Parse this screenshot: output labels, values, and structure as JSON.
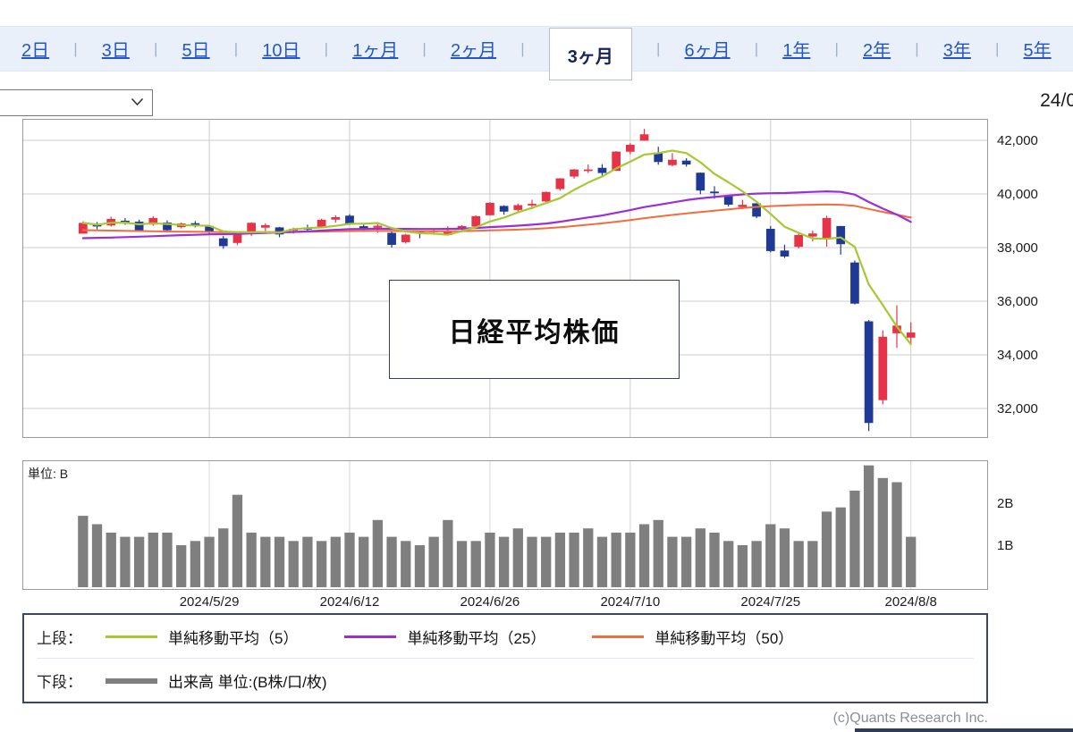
{
  "tabs": {
    "items": [
      "2日",
      "3日",
      "5日",
      "10日",
      "1ヶ月",
      "2ヶ月",
      "3ヶ月",
      "6ヶ月",
      "1年",
      "2年",
      "3年",
      "5年"
    ],
    "selected": "3ヶ月"
  },
  "header": {
    "date_display": "24/0"
  },
  "dropdown": {
    "value": ""
  },
  "chart_overlay": {
    "title": "日経平均株価"
  },
  "volume_panel": {
    "unit_label": "単位: B"
  },
  "legend": {
    "upper_label": "上段：",
    "lower_label": "下段：",
    "ma5_label": "単純移動平均（5）",
    "ma25_label": "単純移動平均（25）",
    "ma50_label": "単純移動平均（50）",
    "volume_label": "出来高 単位:(B株/口/枚)"
  },
  "footer": {
    "copyright": "(c)Quants Research Inc."
  },
  "colors": {
    "up": "#e73348",
    "down": "#1e3a96",
    "ma5": "#a8c832",
    "ma25": "#9a2fd6",
    "ma50": "#f26d3d",
    "volume": "#7f7f7f",
    "grid": "#cccccc",
    "grid_volume": "#d6d6d6",
    "panel_border": "#9a9a9a",
    "link": "#2457c4",
    "tab_selected_text": "#15235a",
    "axis_text": "#1c1c1c"
  },
  "chart_data": {
    "type": "candlestick",
    "title": "日経平均株価",
    "period_selected": "3ヶ月",
    "dates": [
      "2024/5/16",
      "2024/5/17",
      "2024/5/20",
      "2024/5/21",
      "2024/5/22",
      "2024/5/23",
      "2024/5/24",
      "2024/5/27",
      "2024/5/28",
      "2024/5/29",
      "2024/5/30",
      "2024/5/31",
      "2024/6/3",
      "2024/6/4",
      "2024/6/5",
      "2024/6/6",
      "2024/6/7",
      "2024/6/10",
      "2024/6/11",
      "2024/6/12",
      "2024/6/13",
      "2024/6/14",
      "2024/6/17",
      "2024/6/18",
      "2024/6/19",
      "2024/6/20",
      "2024/6/21",
      "2024/6/24",
      "2024/6/25",
      "2024/6/26",
      "2024/6/27",
      "2024/6/28",
      "2024/7/1",
      "2024/7/2",
      "2024/7/3",
      "2024/7/4",
      "2024/7/5",
      "2024/7/8",
      "2024/7/9",
      "2024/7/10",
      "2024/7/11",
      "2024/7/12",
      "2024/7/16",
      "2024/7/17",
      "2024/7/18",
      "2024/7/19",
      "2024/7/22",
      "2024/7/23",
      "2024/7/24",
      "2024/7/25",
      "2024/7/26",
      "2024/7/29",
      "2024/7/30",
      "2024/7/31",
      "2024/8/1",
      "2024/8/2",
      "2024/8/5",
      "2024/8/6",
      "2024/8/7",
      "2024/8/8"
    ],
    "open": [
      38519,
      38847,
      38825,
      39003,
      38967,
      38860,
      38934,
      38762,
      38908,
      38807,
      38345,
      38173,
      38590,
      38743,
      38753,
      38631,
      38732,
      38768,
      39041,
      39190,
      38797,
      38743,
      38550,
      38202,
      38585,
      38622,
      38468,
      38674,
      38781,
      39206,
      39552,
      39403,
      39573,
      39723,
      40183,
      40648,
      40891,
      40975,
      40863,
      41575,
      41985,
      41548,
      41075,
      41244,
      40792,
      40088,
      39913,
      39509,
      39650,
      38699,
      37890,
      38028,
      38412,
      38306,
      38803,
      37444,
      35250,
      32309,
      34804,
      34641
    ],
    "high": [
      38982,
      38954,
      39151,
      39102,
      39039,
      39172,
      39012,
      38935,
      38985,
      38842,
      38429,
      38512,
      38943,
      38907,
      38771,
      38744,
      38854,
      39074,
      39205,
      39246,
      38853,
      38924,
      38594,
      38516,
      38604,
      38723,
      38795,
      38832,
      39198,
      39697,
      39579,
      39639,
      39786,
      40089,
      40592,
      40929,
      41100,
      41112,
      41599,
      41889,
      42426,
      41758,
      41520,
      41331,
      40802,
      40288,
      39958,
      39779,
      39653,
      38802,
      38108,
      38514,
      38633,
      39188,
      38807,
      37519,
      35301,
      34911,
      35849,
      35213
    ],
    "low": [
      38519,
      38677,
      38783,
      38852,
      38594,
      38818,
      38559,
      38717,
      38755,
      38483,
      37958,
      38087,
      38438,
      38620,
      38384,
      38525,
      38572,
      38737,
      38932,
      38837,
      38584,
      38552,
      38001,
      38150,
      38350,
      38477,
      38450,
      38575,
      38730,
      39194,
      39227,
      39337,
      39434,
      39662,
      40123,
      40571,
      40781,
      40662,
      40861,
      41481,
      41978,
      41088,
      41030,
      41020,
      39986,
      39824,
      39533,
      39434,
      39093,
      37825,
      37611,
      37968,
      38232,
      38029,
      37737,
      35880,
      31156,
      32155,
      34259,
      34439
    ],
    "close": [
      38920,
      38787,
      39069,
      38947,
      38617,
      39103,
      38646,
      38900,
      38855,
      38557,
      38054,
      38488,
      38923,
      38837,
      38490,
      38703,
      38684,
      39038,
      39135,
      38877,
      38720,
      38814,
      38102,
      38482,
      38570,
      38633,
      38596,
      38805,
      39173,
      39667,
      39341,
      39583,
      39631,
      40074,
      40581,
      40914,
      40912,
      40781,
      41580,
      41832,
      42224,
      41191,
      41276,
      41098,
      40127,
      40064,
      39599,
      39595,
      39155,
      37870,
      37667,
      38468,
      38526,
      39102,
      38126,
      35910,
      31458,
      34675,
      35090,
      34831
    ],
    "volume_B": [
      1.7,
      1.5,
      1.3,
      1.2,
      1.2,
      1.3,
      1.3,
      1.0,
      1.1,
      1.2,
      1.4,
      2.2,
      1.3,
      1.2,
      1.2,
      1.1,
      1.2,
      1.1,
      1.2,
      1.3,
      1.2,
      1.6,
      1.2,
      1.1,
      1.0,
      1.2,
      1.6,
      1.1,
      1.1,
      1.3,
      1.2,
      1.4,
      1.2,
      1.2,
      1.3,
      1.3,
      1.4,
      1.2,
      1.3,
      1.3,
      1.5,
      1.6,
      1.2,
      1.2,
      1.4,
      1.3,
      1.1,
      1.0,
      1.1,
      1.5,
      1.4,
      1.1,
      1.1,
      1.8,
      1.9,
      2.3,
      2.9,
      2.6,
      2.5,
      1.2
    ],
    "ma5": [
      38920,
      38854,
      38925,
      38931,
      38868,
      38905,
      38876,
      38843,
      38824,
      38812,
      38602,
      38571,
      38575,
      38572,
      38558,
      38688,
      38727,
      38750,
      38810,
      38887,
      38891,
      38917,
      38730,
      38599,
      38538,
      38520,
      38477,
      38617,
      38755,
      38975,
      39116,
      39314,
      39479,
      39659,
      39842,
      40157,
      40422,
      40652,
      40954,
      41204,
      41466,
      41522,
      41621,
      41524,
      41183,
      40751,
      40433,
      40097,
      39708,
      39257,
      38777,
      38551,
      38337,
      38327,
      38378,
      38026,
      36624,
      35854,
      35052,
      34393
    ],
    "ma25": [
      38350,
      38362,
      38375,
      38390,
      38405,
      38425,
      38445,
      38462,
      38478,
      38492,
      38500,
      38510,
      38528,
      38548,
      38565,
      38583,
      38603,
      38632,
      38662,
      38688,
      38698,
      38704,
      38700,
      38696,
      38694,
      38694,
      38698,
      38708,
      38728,
      38762,
      38788,
      38818,
      38852,
      38898,
      38962,
      39042,
      39122,
      39198,
      39296,
      39396,
      39510,
      39592,
      39680,
      39770,
      39836,
      39886,
      39936,
      39982,
      40012,
      40028,
      40034,
      40058,
      40078,
      40098,
      40078,
      39978,
      39700,
      39452,
      39230,
      38958
    ],
    "ma50": [
      38650,
      38641,
      38633,
      38625,
      38617,
      38609,
      38601,
      38595,
      38589,
      38583,
      38578,
      38576,
      38578,
      38580,
      38581,
      38584,
      38589,
      38598,
      38607,
      38614,
      38619,
      38623,
      38619,
      38615,
      38611,
      38609,
      38609,
      38614,
      38624,
      38639,
      38654,
      38671,
      38691,
      38719,
      38757,
      38802,
      38852,
      38902,
      38962,
      39027,
      39097,
      39157,
      39217,
      39277,
      39327,
      39377,
      39427,
      39477,
      39517,
      39547,
      39567,
      39587,
      39597,
      39607,
      39597,
      39557,
      39440,
      39330,
      39230,
      39120
    ],
    "price_axis": {
      "side": "right",
      "ticks": [
        42000,
        40000,
        38000,
        36000,
        34000,
        32000
      ],
      "ylim": [
        30900,
        42800
      ]
    },
    "volume_axis": {
      "unit": "B",
      "ylim": [
        0,
        3.1
      ],
      "ticks": [
        {
          "value": 2,
          "label": "2B"
        },
        {
          "value": 1,
          "label": "1B"
        }
      ]
    },
    "x_gridlines": [
      {
        "index": 9,
        "label": "2024/5/29"
      },
      {
        "index": 19,
        "label": "2024/6/12"
      },
      {
        "index": 29,
        "label": "2024/6/26"
      },
      {
        "index": 39,
        "label": "2024/7/10"
      },
      {
        "index": 49,
        "label": "2024/7/25"
      },
      {
        "index": 59,
        "label": "2024/8/8"
      }
    ],
    "series_legend": {
      "ma5": "単純移動平均（5）",
      "ma25": "単純移動平均（25）",
      "ma50": "単純移動平均（50）",
      "volume": "出来高"
    }
  }
}
